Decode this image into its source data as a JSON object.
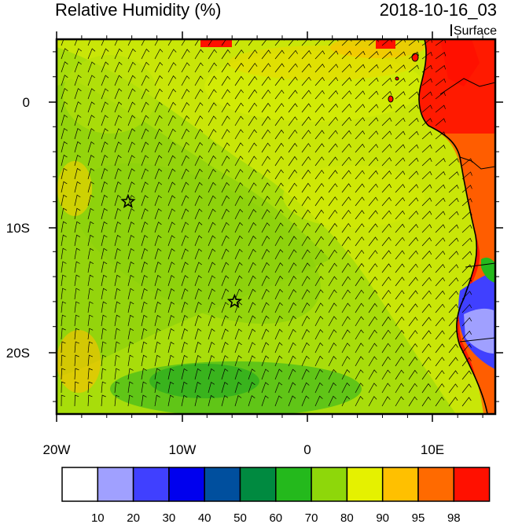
{
  "map": {
    "title": "Relative Humidity (%)",
    "valid_time": "2018-10-16_03",
    "level": "Surface",
    "lon_labels": [
      "20W",
      "10W",
      "0",
      "10E"
    ],
    "lat_labels": [
      "0",
      "10S",
      "20S"
    ],
    "markers": [
      {
        "name": "station-star-west",
        "lon": -14.3,
        "lat": -8.0
      },
      {
        "name": "station-star-south",
        "lon": -5.8,
        "lat": -16.0
      }
    ],
    "extent": {
      "lon": [
        -20,
        15
      ],
      "lat": [
        -25,
        5
      ]
    }
  },
  "colorbar": {
    "colors": [
      "#ffffff",
      "#a0a0ff",
      "#4040ff",
      "#0000ee",
      "#004f9e",
      "#008a40",
      "#24b91c",
      "#8ed70a",
      "#e5f100",
      "#ffc000",
      "#ff6a00",
      "#ff1000"
    ],
    "labels": [
      "10",
      "20",
      "30",
      "40",
      "50",
      "60",
      "70",
      "80",
      "90",
      "95",
      "98"
    ]
  }
}
